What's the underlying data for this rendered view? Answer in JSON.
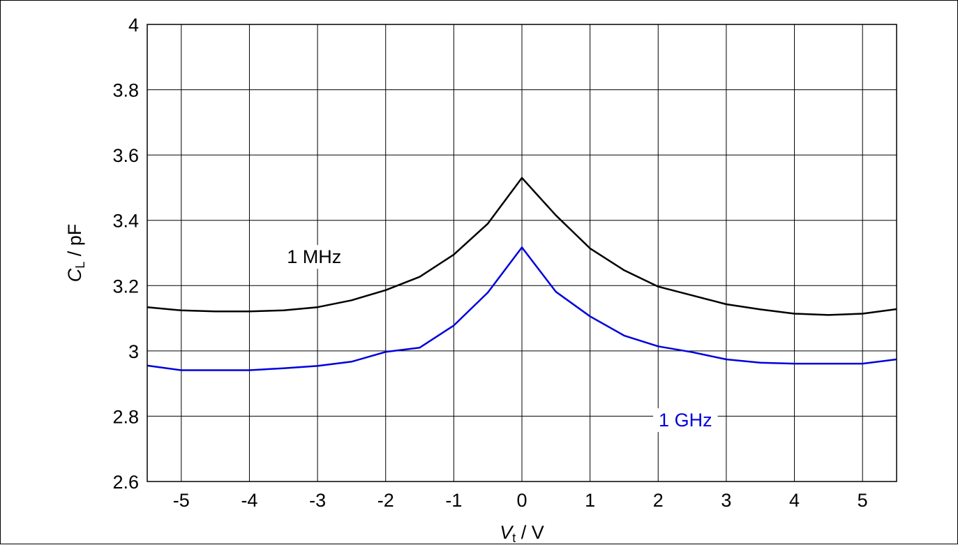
{
  "chart_data": {
    "type": "line",
    "title": "",
    "xlabel": {
      "symbol": "V",
      "subscript": "t",
      "unit": " / V"
    },
    "ylabel": {
      "symbol": "C",
      "subscript": "L",
      "unit": " / pF"
    },
    "xlim": [
      -5.5,
      5.5
    ],
    "ylim": [
      2.6,
      4.0
    ],
    "x_ticks": [
      -5,
      -4,
      -3,
      -2,
      -1,
      0,
      1,
      2,
      3,
      4,
      5
    ],
    "x_tick_labels": [
      "-5",
      "-4",
      "-3",
      "-2",
      "-1",
      "0",
      "1",
      "2",
      "3",
      "4",
      "5"
    ],
    "y_ticks": [
      2.6,
      2.8,
      3.0,
      3.2,
      3.4,
      3.6,
      3.8,
      4.0
    ],
    "y_tick_labels": [
      "2.6",
      "2.8",
      "3",
      "3.2",
      "3.4",
      "3.6",
      "3.8",
      "4"
    ],
    "grid": true,
    "x": [
      -5.5,
      -5,
      -4.5,
      -4,
      -3.5,
      -3,
      -2.5,
      -2,
      -1.5,
      -1,
      -0.5,
      0,
      0.5,
      1,
      1.5,
      2,
      2.5,
      3,
      3.5,
      4,
      4.5,
      5,
      5.5
    ],
    "series": [
      {
        "name": "1 MHz",
        "color": "#000000",
        "label_position": {
          "x": -3.05,
          "y": 3.29
        },
        "values": [
          3.134,
          3.124,
          3.121,
          3.121,
          3.124,
          3.134,
          3.155,
          3.186,
          3.227,
          3.295,
          3.39,
          3.53,
          3.415,
          3.314,
          3.247,
          3.197,
          3.17,
          3.143,
          3.127,
          3.114,
          3.11,
          3.114,
          3.128
        ]
      },
      {
        "name": "1 GHz",
        "color": "#0000dd",
        "label_position": {
          "x": 2.4,
          "y": 2.79
        },
        "values": [
          2.955,
          2.941,
          2.941,
          2.941,
          2.947,
          2.954,
          2.967,
          2.997,
          3.01,
          3.078,
          3.179,
          3.317,
          3.181,
          3.106,
          3.047,
          3.014,
          2.996,
          2.974,
          2.964,
          2.961,
          2.961,
          2.961,
          2.974
        ]
      }
    ]
  }
}
